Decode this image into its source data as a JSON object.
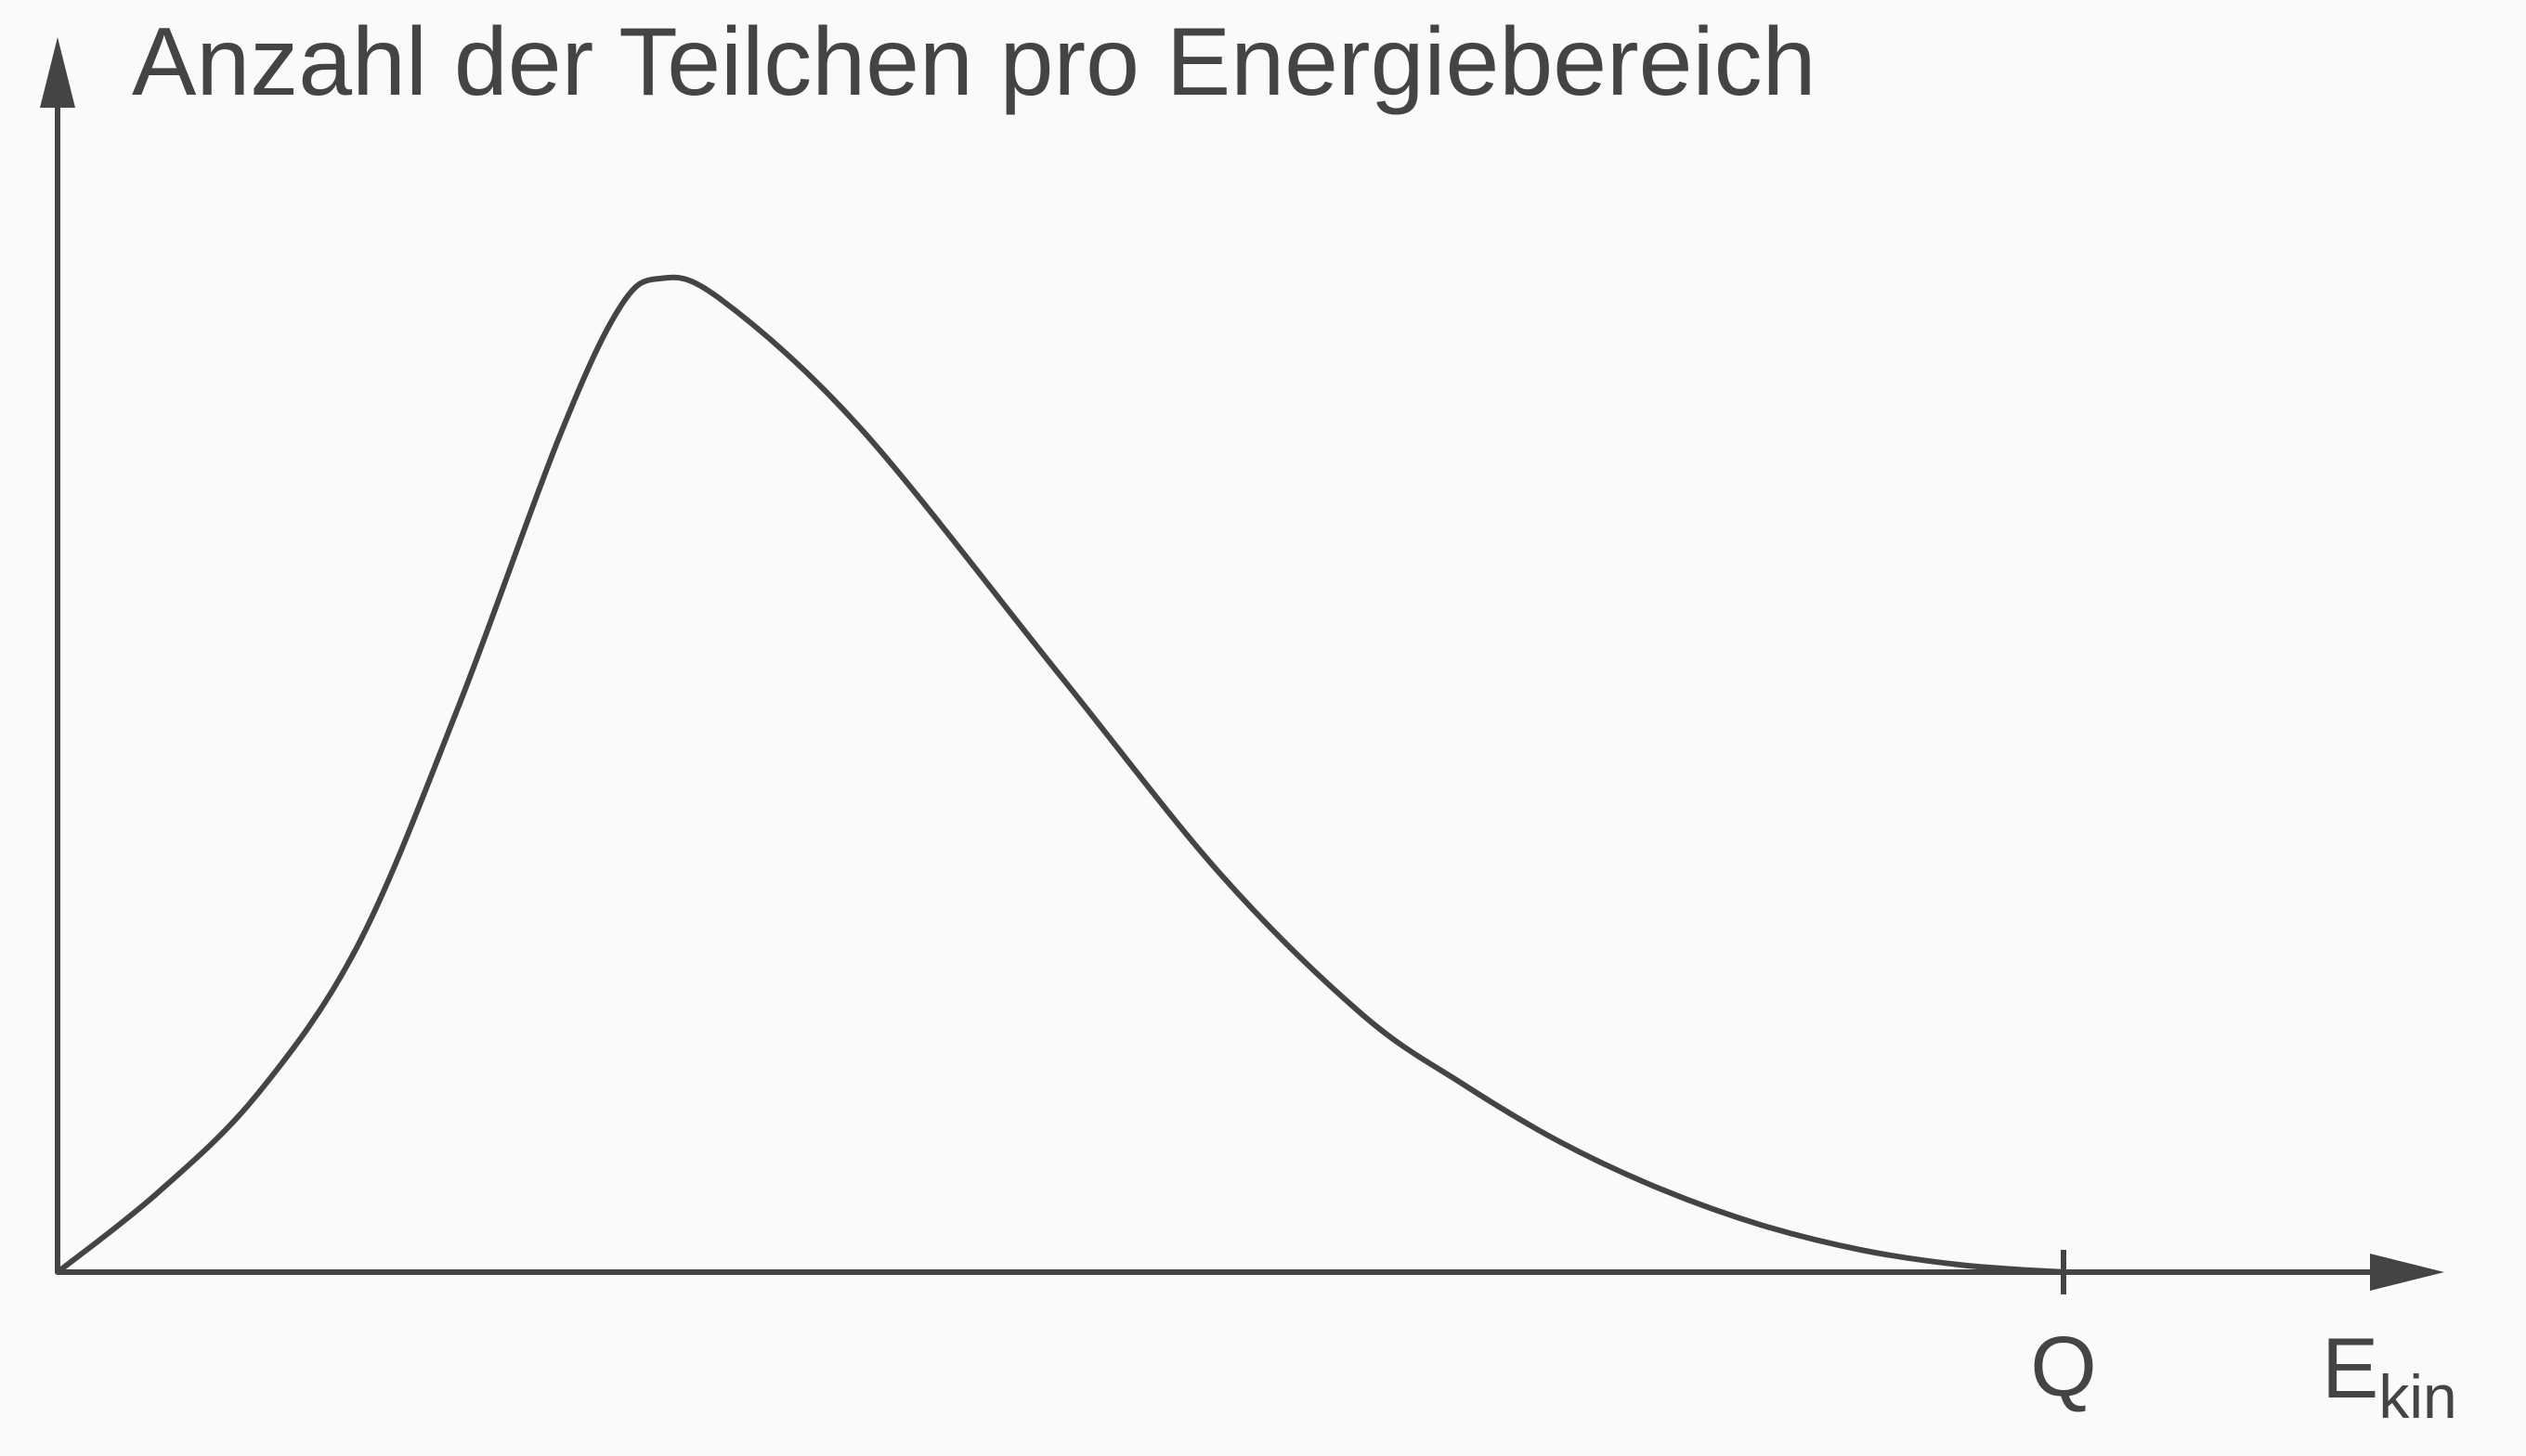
{
  "chart_data": {
    "type": "line",
    "title": "",
    "ylabel": "Anzahl der Teilchen pro Energiebereich",
    "xlabel": {
      "main": "E",
      "subscript": "kin"
    },
    "xlim": [
      0,
      1.2
    ],
    "ylim": [
      0,
      1.07
    ],
    "ticks": [
      {
        "x": 1.0,
        "label": "Q"
      }
    ],
    "grid": false,
    "legend": "none",
    "series": [
      {
        "points": [
          [
            0.0,
            0.0
          ],
          [
            0.05,
            0.08
          ],
          [
            0.1,
            0.18
          ],
          [
            0.15,
            0.33
          ],
          [
            0.2,
            0.57
          ],
          [
            0.25,
            0.84
          ],
          [
            0.28,
            0.97
          ],
          [
            0.3,
            1.0
          ],
          [
            0.33,
            0.98
          ],
          [
            0.4,
            0.85
          ],
          [
            0.5,
            0.6
          ],
          [
            0.58,
            0.4
          ],
          [
            0.65,
            0.26
          ],
          [
            0.7,
            0.19
          ],
          [
            0.75,
            0.13
          ],
          [
            0.8,
            0.083
          ],
          [
            0.85,
            0.047
          ],
          [
            0.9,
            0.022
          ],
          [
            0.95,
            0.007
          ],
          [
            1.0,
            0.0
          ]
        ]
      }
    ],
    "colors": {
      "ink": "#444444",
      "background": "#fafaf9"
    }
  }
}
